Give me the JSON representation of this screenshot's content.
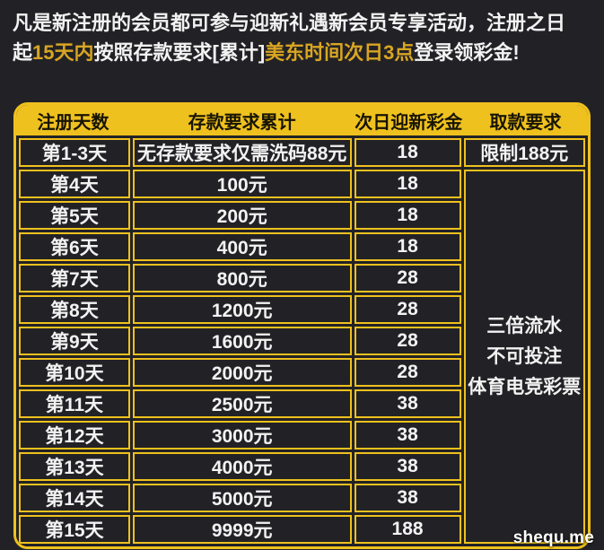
{
  "page": {
    "colors": {
      "bg": "#222226",
      "accent": "#efc11e",
      "hl": "#d9a522",
      "txt": "#f2f2f2"
    }
  },
  "intro": {
    "segments": [
      {
        "text": "凡是新注册的会员都可参与迎新礼遇新会员专享活动，注册之日起",
        "highlight": false
      },
      {
        "text": "15天内",
        "highlight": true
      },
      {
        "text": "按照存款要求[累计]",
        "highlight": false
      },
      {
        "text": "美东时间次日3点",
        "highlight": true
      },
      {
        "text": "登录领彩金!",
        "highlight": false
      }
    ]
  },
  "table": {
    "headers": [
      "注册天数",
      "存款要求累计",
      "次日迎新彩金",
      "取款要求"
    ],
    "rows": [
      {
        "day": "第1-3天",
        "deposit": "无存款要求仅需洗码88元",
        "bonus": "18",
        "withdraw": "限制188元"
      },
      {
        "day": "第4天",
        "deposit": "100元",
        "bonus": "18"
      },
      {
        "day": "第5天",
        "deposit": "200元",
        "bonus": "18"
      },
      {
        "day": "第6天",
        "deposit": "400元",
        "bonus": "18"
      },
      {
        "day": "第7天",
        "deposit": "800元",
        "bonus": "28"
      },
      {
        "day": "第8天",
        "deposit": "1200元",
        "bonus": "28"
      },
      {
        "day": "第9天",
        "deposit": "1600元",
        "bonus": "28"
      },
      {
        "day": "第10天",
        "deposit": "2000元",
        "bonus": "28"
      },
      {
        "day": "第11天",
        "deposit": "2500元",
        "bonus": "38"
      },
      {
        "day": "第12天",
        "deposit": "3000元",
        "bonus": "38"
      },
      {
        "day": "第13天",
        "deposit": "4000元",
        "bonus": "38"
      },
      {
        "day": "第14天",
        "deposit": "5000元",
        "bonus": "38"
      },
      {
        "day": "第15天",
        "deposit": "9999元",
        "bonus": "188"
      }
    ],
    "withdraw_note_lines": [
      "三倍流水",
      "不可投注",
      "体育电竞彩票"
    ]
  },
  "watermark": "shequ.me"
}
